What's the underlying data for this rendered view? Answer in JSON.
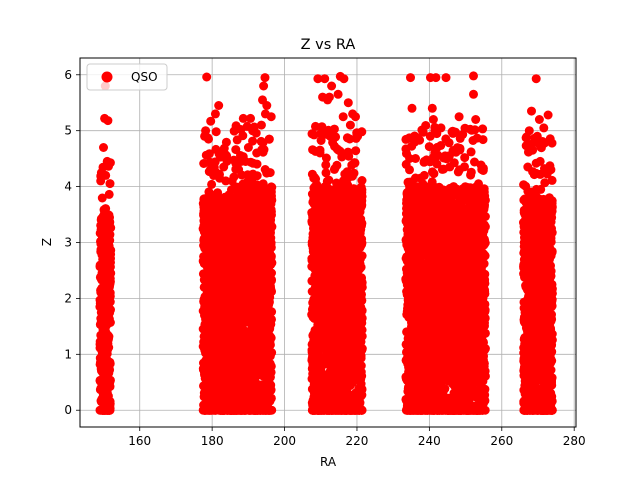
{
  "chart_data": {
    "type": "scatter",
    "title": "Z vs RA",
    "xlabel": "RA",
    "ylabel": "Z",
    "xlim": [
      143.5,
      280.5
    ],
    "ylim": [
      -0.3,
      6.3
    ],
    "xticks": [
      160,
      180,
      200,
      220,
      240,
      260,
      280
    ],
    "yticks": [
      0,
      1,
      2,
      3,
      4,
      5,
      6
    ],
    "xtick_labels": [
      "160",
      "180",
      "200",
      "220",
      "240",
      "260",
      "280"
    ],
    "ytick_labels": [
      "0",
      "1",
      "2",
      "3",
      "4",
      "5",
      "6"
    ],
    "grid": true,
    "legend": {
      "position": "top-left",
      "entries": [
        "QSO"
      ]
    },
    "series": [
      {
        "name": "QSO",
        "color": "#ff0000",
        "clusters": [
          {
            "ra_range": [
              149,
              152
            ],
            "z_dense_max": 3.5,
            "z_max": 5.8
          },
          {
            "ra_range": [
              177.5,
              186.5
            ],
            "z_dense_max": 3.8,
            "z_max": 6.0
          },
          {
            "ra_range": [
              186.5,
              196.5
            ],
            "z_dense_max": 4.0,
            "z_max": 6.0
          },
          {
            "ra_range": [
              207.5,
              221.5
            ],
            "z_dense_max": 4.0,
            "z_max": 6.0
          },
          {
            "ra_range": [
              233.5,
              255.5
            ],
            "z_dense_max": 4.0,
            "z_max": 6.0
          },
          {
            "ra_range": [
              266,
              274
            ],
            "z_dense_max": 3.8,
            "z_max": 5.9
          }
        ],
        "points": [
          [
            150.5,
            5.8
          ],
          [
            150.3,
            5.22
          ],
          [
            151.2,
            5.18
          ],
          [
            150.0,
            4.7
          ],
          [
            151.0,
            4.45
          ],
          [
            150.6,
            4.2
          ],
          [
            178.5,
            5.96
          ],
          [
            178.2,
            5.0
          ],
          [
            179.6,
            5.17
          ],
          [
            180.9,
            5.3
          ],
          [
            181.8,
            5.45
          ],
          [
            179.0,
            4.85
          ],
          [
            182.5,
            4.6
          ],
          [
            184.0,
            4.55
          ],
          [
            185.5,
            4.1
          ],
          [
            183.2,
            4.35
          ],
          [
            190.6,
            5.22
          ],
          [
            188.6,
            5.22
          ],
          [
            193.6,
            5.1
          ],
          [
            194.6,
            5.95
          ],
          [
            194.2,
            5.8
          ],
          [
            193.9,
            5.55
          ],
          [
            195.1,
            5.45
          ],
          [
            194.7,
            5.3
          ],
          [
            196.3,
            5.25
          ],
          [
            195.8,
            4.85
          ],
          [
            190.0,
            4.7
          ],
          [
            192.3,
            4.6
          ],
          [
            188.0,
            4.45
          ],
          [
            209.2,
            5.93
          ],
          [
            211.1,
            5.93
          ],
          [
            215.4,
            5.97
          ],
          [
            216.4,
            5.93
          ],
          [
            213.0,
            5.8
          ],
          [
            210.5,
            5.6
          ],
          [
            212.4,
            5.6
          ],
          [
            217.6,
            5.5
          ],
          [
            211.9,
            5.55
          ],
          [
            214.8,
            5.65
          ],
          [
            216.2,
            5.25
          ],
          [
            218.8,
            5.3
          ],
          [
            219.6,
            5.25
          ],
          [
            210.0,
            4.95
          ],
          [
            212.6,
            4.9
          ],
          [
            218.2,
            5.1
          ],
          [
            209.8,
            4.6
          ],
          [
            234.8,
            5.95
          ],
          [
            240.3,
            5.95
          ],
          [
            241.8,
            5.95
          ],
          [
            244.6,
            5.95
          ],
          [
            252.2,
            5.98
          ],
          [
            235.2,
            5.4
          ],
          [
            240.8,
            5.4
          ],
          [
            241.1,
            5.2
          ],
          [
            243.2,
            5.05
          ],
          [
            248.2,
            5.25
          ],
          [
            252.8,
            5.2
          ],
          [
            252.2,
            5.65
          ],
          [
            236.0,
            4.8
          ],
          [
            241.5,
            4.6
          ],
          [
            245.5,
            4.55
          ],
          [
            234.5,
            4.3
          ],
          [
            239.0,
            4.45
          ],
          [
            269.5,
            5.93
          ],
          [
            268.2,
            5.35
          ],
          [
            270.4,
            5.2
          ],
          [
            272.8,
            5.28
          ],
          [
            267.6,
            5.0
          ],
          [
            271.6,
            5.05
          ],
          [
            268.5,
            4.65
          ],
          [
            269.8,
            4.9
          ],
          [
            270.6,
            4.45
          ],
          [
            267.2,
            4.35
          ]
        ]
      }
    ]
  }
}
